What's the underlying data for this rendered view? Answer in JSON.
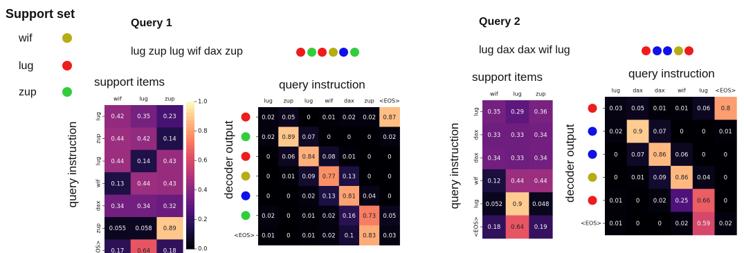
{
  "colors": {
    "red": "#ee1c1c",
    "green": "#32cd3c",
    "olive": "#b5ad14",
    "blue": "#1010e8"
  },
  "support": {
    "title": "Support set",
    "items": [
      {
        "word": "wif",
        "color": "olive"
      },
      {
        "word": "lug",
        "color": "red"
      },
      {
        "word": "zup",
        "color": "green"
      }
    ]
  },
  "query1": {
    "title": "Query 1",
    "instruction": "lug zup lug wif dax zup",
    "output_colors": [
      "red",
      "green",
      "red",
      "olive",
      "blue",
      "green"
    ],
    "support_map": {
      "title": "support items",
      "ylabel": "query instruction",
      "cols": [
        "wif",
        "lug",
        "zup"
      ],
      "rows": [
        "lug",
        "zup",
        "lug",
        "wif",
        "dax",
        "zup",
        "<EOS>"
      ],
      "values": [
        [
          0.42,
          0.35,
          0.23
        ],
        [
          0.44,
          0.42,
          0.14
        ],
        [
          0.44,
          0.14,
          0.43
        ],
        [
          0.13,
          0.44,
          0.43
        ],
        [
          0.34,
          0.34,
          0.32
        ],
        [
          0.055,
          0.058,
          0.89
        ],
        [
          0.17,
          0.64,
          0.18
        ]
      ],
      "labels": [
        [
          "0.42",
          "0.35",
          "0.23"
        ],
        [
          "0.44",
          "0.42",
          "0.14"
        ],
        [
          "0.44",
          "0.14",
          "0.43"
        ],
        [
          "0.13",
          "0.44",
          "0.43"
        ],
        [
          "0.34",
          "0.34",
          "0.32"
        ],
        [
          "0.055",
          "0.058",
          "0.89"
        ],
        [
          "0.17",
          "0.64",
          "0.18"
        ]
      ]
    },
    "colorbar": {
      "ticks": [
        {
          "value": 1.0,
          "label": "1.0"
        },
        {
          "value": 0.8,
          "label": "0.8"
        },
        {
          "value": 0.6,
          "label": "0.6"
        },
        {
          "value": 0.4,
          "label": "0.4"
        },
        {
          "value": 0.2,
          "label": "0.2"
        },
        {
          "value": 0.0,
          "label": "0.0"
        }
      ]
    },
    "query_map": {
      "title": "query instruction",
      "ylabel": "decoder output",
      "cols": [
        "lug",
        "zup",
        "lug",
        "wif",
        "dax",
        "zup",
        "<EOS>"
      ],
      "rows": [
        "red",
        "green",
        "red",
        "olive",
        "blue",
        "green",
        "<EOS>"
      ],
      "values": [
        [
          0.02,
          0.05,
          0,
          0.01,
          0.02,
          0.02,
          0.87
        ],
        [
          0.02,
          0.89,
          0.07,
          0,
          0,
          0,
          0.02
        ],
        [
          0,
          0.06,
          0.84,
          0.08,
          0.01,
          0,
          0
        ],
        [
          0,
          0.01,
          0.09,
          0.77,
          0.13,
          0,
          0
        ],
        [
          0,
          0,
          0.02,
          0.13,
          0.81,
          0.04,
          0
        ],
        [
          0.02,
          0,
          0.01,
          0.02,
          0.16,
          0.73,
          0.05
        ],
        [
          0.01,
          0,
          0.01,
          0.02,
          0.1,
          0.83,
          0.03
        ]
      ],
      "labels": [
        [
          "0.02",
          "0.05",
          "0",
          "0.01",
          "0.02",
          "0.02",
          "0.87"
        ],
        [
          "0.02",
          "0.89",
          "0.07",
          "0",
          "0",
          "0",
          "0.02"
        ],
        [
          "0",
          "0.06",
          "0.84",
          "0.08",
          "0.01",
          "0",
          "0"
        ],
        [
          "0",
          "0.01",
          "0.09",
          "0.77",
          "0.13",
          "0",
          "0"
        ],
        [
          "0",
          "0",
          "0.02",
          "0.13",
          "0.81",
          "0.04",
          "0"
        ],
        [
          "0.02",
          "0",
          "0.01",
          "0.02",
          "0.16",
          "0.73",
          "0.05"
        ],
        [
          "0.01",
          "0",
          "0.01",
          "0.02",
          "0.1",
          "0.83",
          "0.03"
        ]
      ]
    }
  },
  "query2": {
    "title": "Query 2",
    "instruction": "lug dax dax wif lug",
    "output_colors": [
      "red",
      "blue",
      "blue",
      "olive",
      "red"
    ],
    "support_map": {
      "title": "support items",
      "ylabel": "query instruction",
      "cols": [
        "wif",
        "lug",
        "zup"
      ],
      "rows": [
        "lug",
        "dax",
        "dax",
        "wif",
        "lug",
        "<EOS>"
      ],
      "values": [
        [
          0.35,
          0.29,
          0.36
        ],
        [
          0.33,
          0.33,
          0.34
        ],
        [
          0.34,
          0.33,
          0.34
        ],
        [
          0.12,
          0.44,
          0.44
        ],
        [
          0.052,
          0.9,
          0.048
        ],
        [
          0.18,
          0.64,
          0.19
        ]
      ],
      "labels": [
        [
          "0.35",
          "0.29",
          "0.36"
        ],
        [
          "0.33",
          "0.33",
          "0.34"
        ],
        [
          "0.34",
          "0.33",
          "0.34"
        ],
        [
          "0.12",
          "0.44",
          "0.44"
        ],
        [
          "0.052",
          "0.9",
          "0.048"
        ],
        [
          "0.18",
          "0.64",
          "0.19"
        ]
      ]
    },
    "query_map": {
      "title": "query instruction",
      "ylabel": "decoder output",
      "cols": [
        "lug",
        "dax",
        "dax",
        "wif",
        "lug",
        "<EOS>"
      ],
      "rows": [
        "red",
        "blue",
        "blue",
        "olive",
        "red",
        "<EOS>"
      ],
      "values": [
        [
          0.03,
          0.05,
          0.01,
          0.01,
          0.06,
          0.8
        ],
        [
          0.02,
          0.9,
          0.07,
          0,
          0,
          0.01
        ],
        [
          0,
          0.07,
          0.86,
          0.06,
          0,
          0
        ],
        [
          0,
          0.01,
          0.09,
          0.86,
          0.04,
          0
        ],
        [
          0.01,
          0,
          0.02,
          0.25,
          0.66,
          0
        ],
        [
          0.01,
          0,
          0,
          0.02,
          0.59,
          0.02
        ]
      ],
      "labels": [
        [
          "0.03",
          "0.05",
          "0.01",
          "0.01",
          "0.06",
          "0.8"
        ],
        [
          "0.02",
          "0.9",
          "0.07",
          "0",
          "0",
          "0.01"
        ],
        [
          "0",
          "0.07",
          "0.86",
          "0.06",
          "0",
          "0"
        ],
        [
          "0",
          "0.01",
          "0.09",
          "0.86",
          "0.04",
          "0"
        ],
        [
          "0.01",
          "0",
          "0.02",
          "0.25",
          "0.66",
          "0"
        ],
        [
          "0.01",
          "0",
          "0",
          "0.02",
          "0.59",
          "0.02"
        ]
      ]
    }
  }
}
